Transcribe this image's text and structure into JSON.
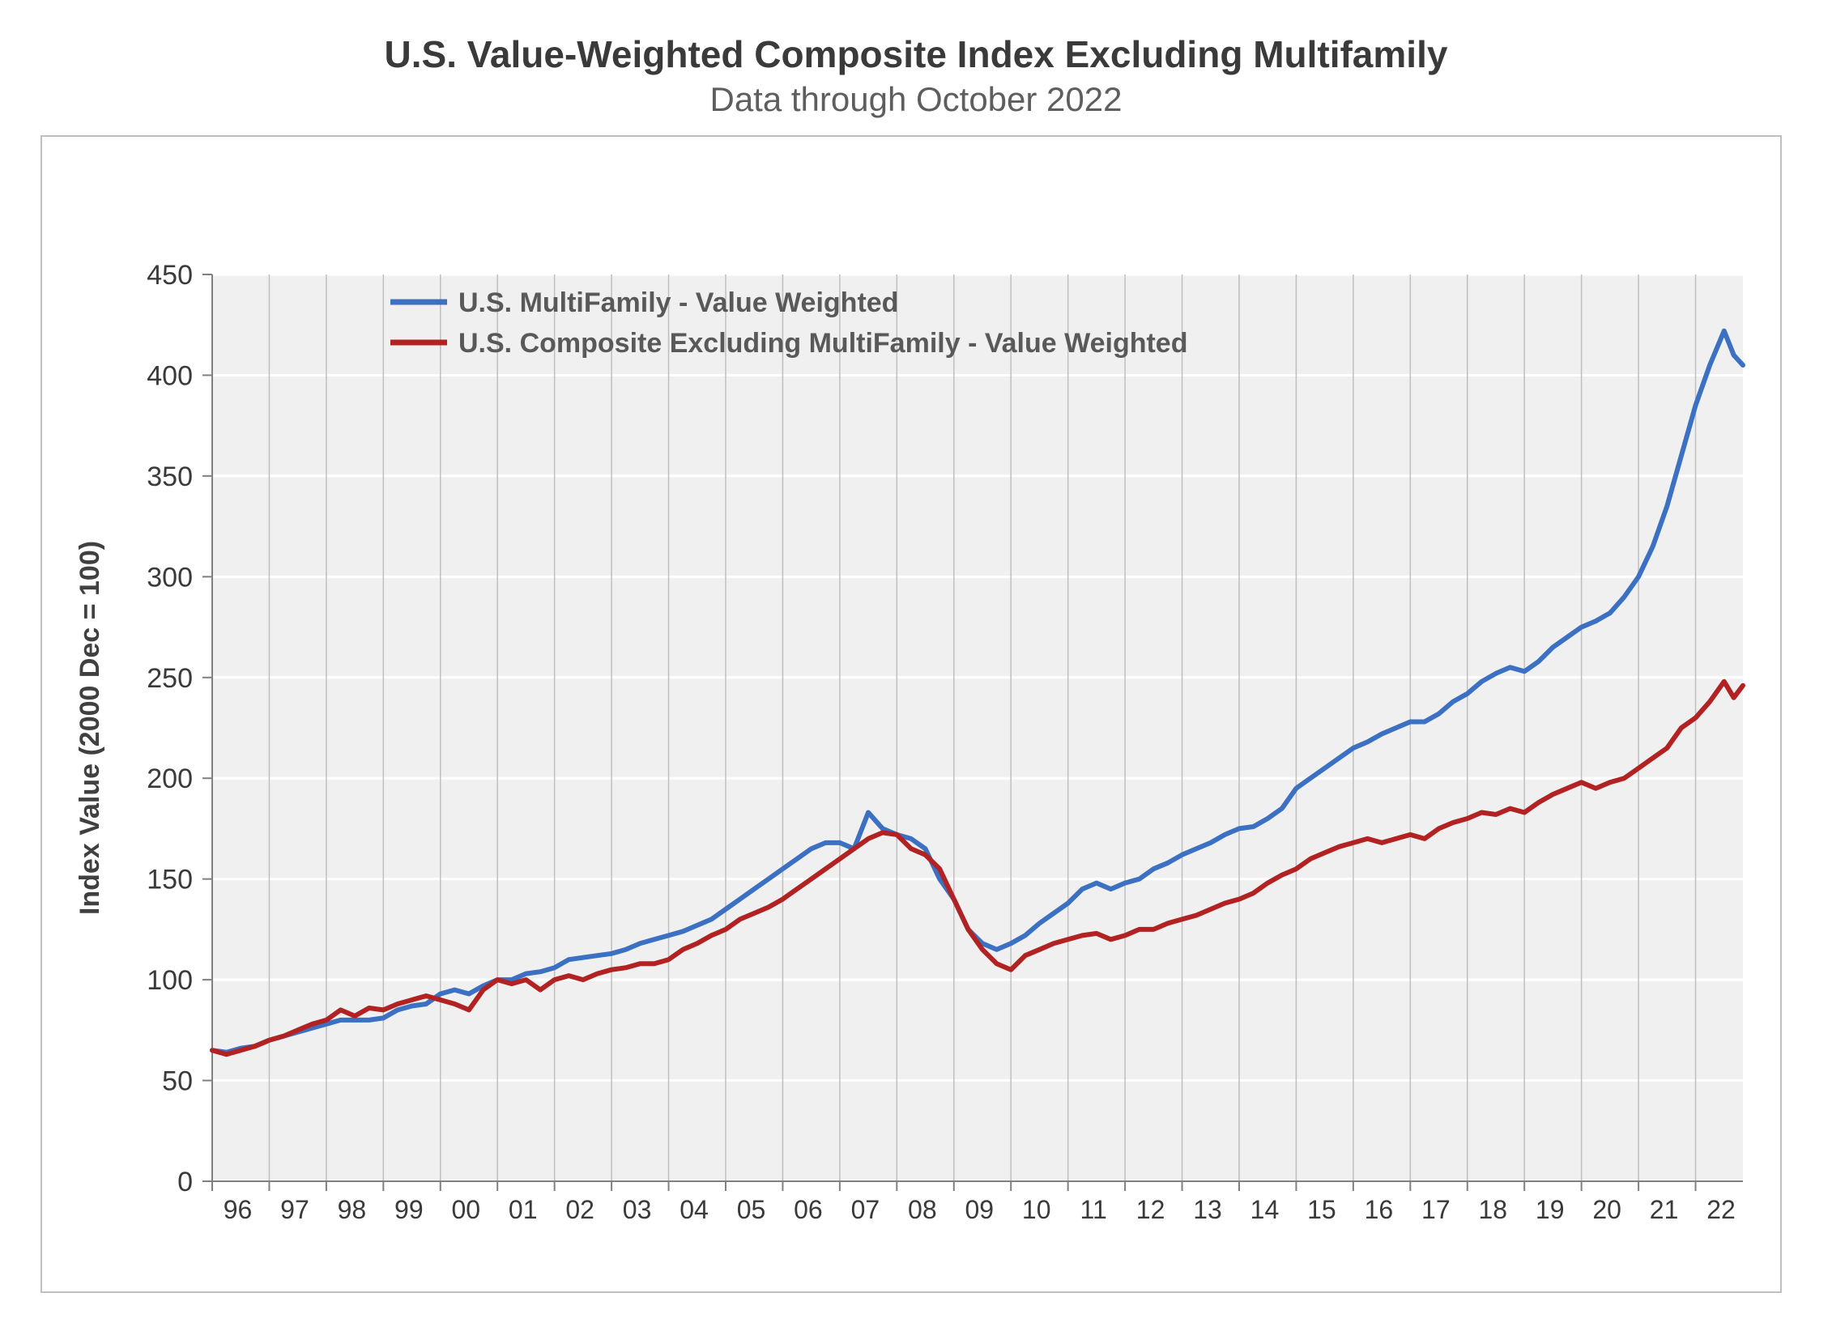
{
  "title": "U.S. Value-Weighted Composite Index Excluding Multifamily",
  "subtitle": "Data through October 2022",
  "chart": {
    "type": "line",
    "background_color": "#ffffff",
    "plot_background_color": "#f0f0f0",
    "grid_color": "#bfbfbf",
    "border_color": "#bfbfbf",
    "ylabel": "Index Value (2000 Dec = 100)",
    "ylabel_fontsize": 34,
    "ylabel_color": "#404040",
    "ylabel_bold": true,
    "ylim": [
      0,
      450
    ],
    "ytick_step": 50,
    "yticks": [
      0,
      50,
      100,
      150,
      200,
      250,
      300,
      350,
      400,
      450
    ],
    "ytick_fontsize": 34,
    "xtick_fontsize": 32,
    "x_start_year": 1996,
    "x_end_year_fraction": 2022.83,
    "xticks_years": [
      1996,
      1997,
      1998,
      1999,
      2000,
      2001,
      2002,
      2003,
      2004,
      2005,
      2006,
      2007,
      2008,
      2009,
      2010,
      2011,
      2012,
      2013,
      2014,
      2015,
      2016,
      2017,
      2018,
      2019,
      2020,
      2021,
      2022
    ],
    "xtick_labels": [
      "96",
      "97",
      "98",
      "99",
      "00",
      "01",
      "02",
      "03",
      "04",
      "05",
      "06",
      "07",
      "08",
      "09",
      "10",
      "11",
      "12",
      "13",
      "14",
      "15",
      "16",
      "17",
      "18",
      "19",
      "20",
      "21",
      "22"
    ],
    "line_width": 6,
    "legend": {
      "position": "top-inside",
      "fontsize": 34,
      "swatch_line_length": 70,
      "swatch_line_width": 7,
      "items": [
        {
          "label": "U.S. MultiFamily -  Value Weighted",
          "color": "#3b70c2"
        },
        {
          "label": "U.S. Composite Excluding MultiFamily -  Value Weighted",
          "color": "#b22222"
        }
      ]
    },
    "series": [
      {
        "name": "U.S. MultiFamily - Value Weighted",
        "color": "#3b70c2",
        "data": [
          [
            1996.0,
            65
          ],
          [
            1996.25,
            64
          ],
          [
            1996.5,
            66
          ],
          [
            1996.75,
            67
          ],
          [
            1997.0,
            70
          ],
          [
            1997.25,
            72
          ],
          [
            1997.5,
            74
          ],
          [
            1997.75,
            76
          ],
          [
            1998.0,
            78
          ],
          [
            1998.25,
            80
          ],
          [
            1998.5,
            80
          ],
          [
            1998.75,
            80
          ],
          [
            1999.0,
            81
          ],
          [
            1999.25,
            85
          ],
          [
            1999.5,
            87
          ],
          [
            1999.75,
            88
          ],
          [
            2000.0,
            93
          ],
          [
            2000.25,
            95
          ],
          [
            2000.5,
            93
          ],
          [
            2000.75,
            97
          ],
          [
            2001.0,
            100
          ],
          [
            2001.25,
            100
          ],
          [
            2001.5,
            103
          ],
          [
            2001.75,
            104
          ],
          [
            2002.0,
            106
          ],
          [
            2002.25,
            110
          ],
          [
            2002.5,
            111
          ],
          [
            2002.75,
            112
          ],
          [
            2003.0,
            113
          ],
          [
            2003.25,
            115
          ],
          [
            2003.5,
            118
          ],
          [
            2003.75,
            120
          ],
          [
            2004.0,
            122
          ],
          [
            2004.25,
            124
          ],
          [
            2004.5,
            127
          ],
          [
            2004.75,
            130
          ],
          [
            2005.0,
            135
          ],
          [
            2005.25,
            140
          ],
          [
            2005.5,
            145
          ],
          [
            2005.75,
            150
          ],
          [
            2006.0,
            155
          ],
          [
            2006.25,
            160
          ],
          [
            2006.5,
            165
          ],
          [
            2006.75,
            168
          ],
          [
            2007.0,
            168
          ],
          [
            2007.25,
            165
          ],
          [
            2007.5,
            183
          ],
          [
            2007.75,
            175
          ],
          [
            2008.0,
            172
          ],
          [
            2008.25,
            170
          ],
          [
            2008.5,
            165
          ],
          [
            2008.75,
            150
          ],
          [
            2009.0,
            140
          ],
          [
            2009.25,
            125
          ],
          [
            2009.5,
            118
          ],
          [
            2009.75,
            115
          ],
          [
            2010.0,
            118
          ],
          [
            2010.25,
            122
          ],
          [
            2010.5,
            128
          ],
          [
            2010.75,
            133
          ],
          [
            2011.0,
            138
          ],
          [
            2011.25,
            145
          ],
          [
            2011.5,
            148
          ],
          [
            2011.75,
            145
          ],
          [
            2012.0,
            148
          ],
          [
            2012.25,
            150
          ],
          [
            2012.5,
            155
          ],
          [
            2012.75,
            158
          ],
          [
            2013.0,
            162
          ],
          [
            2013.25,
            165
          ],
          [
            2013.5,
            168
          ],
          [
            2013.75,
            172
          ],
          [
            2014.0,
            175
          ],
          [
            2014.25,
            176
          ],
          [
            2014.5,
            180
          ],
          [
            2014.75,
            185
          ],
          [
            2015.0,
            195
          ],
          [
            2015.25,
            200
          ],
          [
            2015.5,
            205
          ],
          [
            2015.75,
            210
          ],
          [
            2016.0,
            215
          ],
          [
            2016.25,
            218
          ],
          [
            2016.5,
            222
          ],
          [
            2016.75,
            225
          ],
          [
            2017.0,
            228
          ],
          [
            2017.25,
            228
          ],
          [
            2017.5,
            232
          ],
          [
            2017.75,
            238
          ],
          [
            2018.0,
            242
          ],
          [
            2018.25,
            248
          ],
          [
            2018.5,
            252
          ],
          [
            2018.75,
            255
          ],
          [
            2019.0,
            253
          ],
          [
            2019.25,
            258
          ],
          [
            2019.5,
            265
          ],
          [
            2019.75,
            270
          ],
          [
            2020.0,
            275
          ],
          [
            2020.25,
            278
          ],
          [
            2020.5,
            282
          ],
          [
            2020.75,
            290
          ],
          [
            2021.0,
            300
          ],
          [
            2021.25,
            315
          ],
          [
            2021.5,
            335
          ],
          [
            2021.75,
            360
          ],
          [
            2022.0,
            385
          ],
          [
            2022.25,
            405
          ],
          [
            2022.5,
            422
          ],
          [
            2022.67,
            410
          ],
          [
            2022.83,
            405
          ]
        ]
      },
      {
        "name": "U.S. Composite Excluding MultiFamily - Value Weighted",
        "color": "#b22222",
        "data": [
          [
            1996.0,
            65
          ],
          [
            1996.25,
            63
          ],
          [
            1996.5,
            65
          ],
          [
            1996.75,
            67
          ],
          [
            1997.0,
            70
          ],
          [
            1997.25,
            72
          ],
          [
            1997.5,
            75
          ],
          [
            1997.75,
            78
          ],
          [
            1998.0,
            80
          ],
          [
            1998.25,
            85
          ],
          [
            1998.5,
            82
          ],
          [
            1998.75,
            86
          ],
          [
            1999.0,
            85
          ],
          [
            1999.25,
            88
          ],
          [
            1999.5,
            90
          ],
          [
            1999.75,
            92
          ],
          [
            2000.0,
            90
          ],
          [
            2000.25,
            88
          ],
          [
            2000.5,
            85
          ],
          [
            2000.75,
            95
          ],
          [
            2001.0,
            100
          ],
          [
            2001.25,
            98
          ],
          [
            2001.5,
            100
          ],
          [
            2001.75,
            95
          ],
          [
            2002.0,
            100
          ],
          [
            2002.25,
            102
          ],
          [
            2002.5,
            100
          ],
          [
            2002.75,
            103
          ],
          [
            2003.0,
            105
          ],
          [
            2003.25,
            106
          ],
          [
            2003.5,
            108
          ],
          [
            2003.75,
            108
          ],
          [
            2004.0,
            110
          ],
          [
            2004.25,
            115
          ],
          [
            2004.5,
            118
          ],
          [
            2004.75,
            122
          ],
          [
            2005.0,
            125
          ],
          [
            2005.25,
            130
          ],
          [
            2005.5,
            133
          ],
          [
            2005.75,
            136
          ],
          [
            2006.0,
            140
          ],
          [
            2006.25,
            145
          ],
          [
            2006.5,
            150
          ],
          [
            2006.75,
            155
          ],
          [
            2007.0,
            160
          ],
          [
            2007.25,
            165
          ],
          [
            2007.5,
            170
          ],
          [
            2007.75,
            173
          ],
          [
            2008.0,
            172
          ],
          [
            2008.25,
            165
          ],
          [
            2008.5,
            162
          ],
          [
            2008.75,
            155
          ],
          [
            2009.0,
            140
          ],
          [
            2009.25,
            125
          ],
          [
            2009.5,
            115
          ],
          [
            2009.75,
            108
          ],
          [
            2010.0,
            105
          ],
          [
            2010.25,
            112
          ],
          [
            2010.5,
            115
          ],
          [
            2010.75,
            118
          ],
          [
            2011.0,
            120
          ],
          [
            2011.25,
            122
          ],
          [
            2011.5,
            123
          ],
          [
            2011.75,
            120
          ],
          [
            2012.0,
            122
          ],
          [
            2012.25,
            125
          ],
          [
            2012.5,
            125
          ],
          [
            2012.75,
            128
          ],
          [
            2013.0,
            130
          ],
          [
            2013.25,
            132
          ],
          [
            2013.5,
            135
          ],
          [
            2013.75,
            138
          ],
          [
            2014.0,
            140
          ],
          [
            2014.25,
            143
          ],
          [
            2014.5,
            148
          ],
          [
            2014.75,
            152
          ],
          [
            2015.0,
            155
          ],
          [
            2015.25,
            160
          ],
          [
            2015.5,
            163
          ],
          [
            2015.75,
            166
          ],
          [
            2016.0,
            168
          ],
          [
            2016.25,
            170
          ],
          [
            2016.5,
            168
          ],
          [
            2016.75,
            170
          ],
          [
            2017.0,
            172
          ],
          [
            2017.25,
            170
          ],
          [
            2017.5,
            175
          ],
          [
            2017.75,
            178
          ],
          [
            2018.0,
            180
          ],
          [
            2018.25,
            183
          ],
          [
            2018.5,
            182
          ],
          [
            2018.75,
            185
          ],
          [
            2019.0,
            183
          ],
          [
            2019.25,
            188
          ],
          [
            2019.5,
            192
          ],
          [
            2019.75,
            195
          ],
          [
            2020.0,
            198
          ],
          [
            2020.25,
            195
          ],
          [
            2020.5,
            198
          ],
          [
            2020.75,
            200
          ],
          [
            2021.0,
            205
          ],
          [
            2021.25,
            210
          ],
          [
            2021.5,
            215
          ],
          [
            2021.75,
            225
          ],
          [
            2022.0,
            230
          ],
          [
            2022.25,
            238
          ],
          [
            2022.5,
            248
          ],
          [
            2022.67,
            240
          ],
          [
            2022.83,
            246
          ]
        ]
      }
    ]
  }
}
